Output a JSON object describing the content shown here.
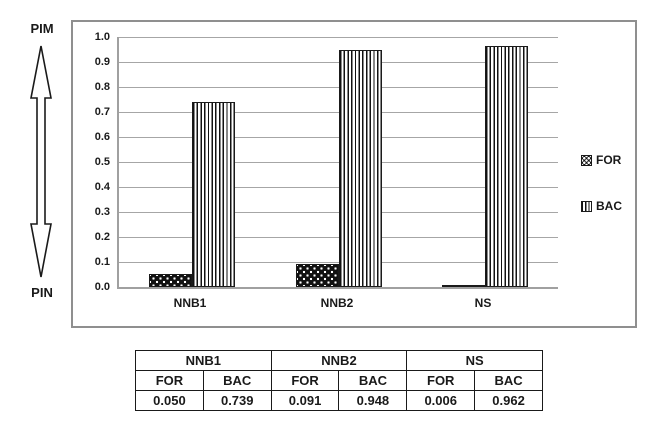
{
  "annotations": {
    "top_label": "PIM",
    "bottom_label": "PIN"
  },
  "chart_data": {
    "type": "bar",
    "title": "",
    "categories": [
      "NNB1",
      "NNB2",
      "NS"
    ],
    "series": [
      {
        "name": "FOR",
        "pattern": "black-with-white-dots",
        "values": [
          0.05,
          0.091,
          0.006
        ]
      },
      {
        "name": "BAC",
        "pattern": "vertical-stripes",
        "values": [
          0.739,
          0.948,
          0.962
        ]
      }
    ],
    "ylim": [
      0.0,
      1.0
    ],
    "ytick_step": 0.1,
    "ytick_labels": [
      "1.0",
      "0.9",
      "0.8",
      "0.7",
      "0.6",
      "0.5",
      "0.4",
      "0.3",
      "0.2",
      "0.1",
      "0.0"
    ],
    "grid": true,
    "legend": {
      "position": "right",
      "entries": [
        "FOR",
        "BAC"
      ]
    },
    "colors": {
      "gridline": "#a6a6a6",
      "axis_line": "#a0a0a0",
      "box_border": "#8f8f8f",
      "bar_outline": "#1a1a1a",
      "text": "#1a1a1a"
    }
  },
  "table": {
    "group_headers": [
      "NNB1",
      "NNB2",
      "NS"
    ],
    "column_headers": [
      "FOR",
      "BAC",
      "FOR",
      "BAC",
      "FOR",
      "BAC"
    ],
    "values": [
      "0.050",
      "0.739",
      "0.091",
      "0.948",
      "0.006",
      "0.962"
    ]
  }
}
